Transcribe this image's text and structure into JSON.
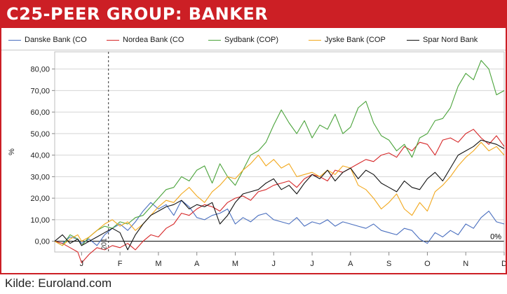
{
  "header": {
    "title": "C25-PEER GROUP: BANKER"
  },
  "footer": {
    "source": "Kilde: Euroland.com"
  },
  "chart_data": {
    "type": "line",
    "ylabel": "%",
    "ylim": [
      -5,
      88
    ],
    "yticks": [
      "0,00",
      "10,00",
      "20,00",
      "30,00",
      "40,00",
      "50,00",
      "60,00",
      "70,00",
      "80,00"
    ],
    "ytick_values": [
      0,
      10,
      20,
      30,
      40,
      50,
      60,
      70,
      80
    ],
    "categories": [
      "J",
      "F",
      "M",
      "A",
      "M",
      "J",
      "J",
      "A",
      "S",
      "O",
      "N",
      "D"
    ],
    "x_axis_note": "201",
    "zero_label": "0%",
    "grid": "horizontal",
    "legend_position": "top",
    "reference_line": {
      "x": 0.7,
      "style": "dashed"
    },
    "x_domain": [
      -0.7,
      11.0
    ],
    "series": [
      {
        "name": "Danske Bank (CO",
        "color": "#4a6fbf",
        "x": [
          -0.7,
          -0.5,
          -0.3,
          -0.1,
          0,
          0.2,
          0.4,
          0.6,
          0.8,
          1.0,
          1.2,
          1.4,
          1.6,
          1.8,
          2.0,
          2.2,
          2.4,
          2.6,
          2.8,
          3.0,
          3.2,
          3.4,
          3.6,
          3.8,
          4.0,
          4.2,
          4.4,
          4.6,
          4.8,
          5.0,
          5.2,
          5.4,
          5.6,
          5.8,
          6.0,
          6.2,
          6.4,
          6.6,
          6.8,
          7.0,
          7.2,
          7.4,
          7.6,
          7.8,
          8.0,
          8.2,
          8.4,
          8.6,
          8.8,
          9.0,
          9.2,
          9.4,
          9.6,
          9.8,
          10.0,
          10.2,
          10.4,
          10.6,
          10.8,
          11.0
        ],
        "y": [
          0,
          -1,
          2,
          1,
          -1,
          1,
          -2,
          3,
          6,
          8,
          5,
          9,
          14,
          18,
          15,
          17,
          12,
          19,
          16,
          11,
          10,
          12,
          13,
          15,
          8,
          11,
          9,
          12,
          13,
          10,
          9,
          8,
          11,
          7,
          9,
          8,
          10,
          7,
          9,
          8,
          7,
          6,
          8,
          5,
          4,
          3,
          6,
          5,
          1,
          -1,
          4,
          2,
          5,
          3,
          8,
          6,
          11,
          14,
          9,
          8
        ]
      },
      {
        "name": "Nordea Bank (CO",
        "color": "#d62728",
        "x": [
          -0.7,
          -0.5,
          -0.3,
          -0.1,
          0,
          0.2,
          0.4,
          0.6,
          0.8,
          1.0,
          1.2,
          1.4,
          1.6,
          1.8,
          2.0,
          2.2,
          2.4,
          2.6,
          2.8,
          3.0,
          3.2,
          3.4,
          3.6,
          3.8,
          4.0,
          4.2,
          4.4,
          4.6,
          4.8,
          5.0,
          5.2,
          5.4,
          5.6,
          5.8,
          6.0,
          6.2,
          6.4,
          6.6,
          6.8,
          7.0,
          7.2,
          7.4,
          7.6,
          7.8,
          8.0,
          8.2,
          8.4,
          8.6,
          8.8,
          9.0,
          9.2,
          9.4,
          9.6,
          9.8,
          10.0,
          10.2,
          10.4,
          10.6,
          10.8,
          11.0
        ],
        "y": [
          0,
          -1,
          -3,
          -5,
          -10,
          -6,
          -3,
          -4,
          -2,
          -3,
          -1,
          -4,
          0,
          3,
          2,
          6,
          8,
          13,
          12,
          15,
          17,
          16,
          14,
          18,
          20,
          21,
          19,
          23,
          24,
          26,
          27,
          28,
          25,
          29,
          31,
          30,
          28,
          33,
          32,
          34,
          36,
          38,
          37,
          40,
          41,
          39,
          44,
          42,
          46,
          45,
          40,
          47,
          48,
          46,
          50,
          52,
          48,
          45,
          49,
          44
        ]
      },
      {
        "name": "Sydbank (COP)",
        "color": "#4aa33a",
        "x": [
          -0.7,
          -0.5,
          -0.3,
          -0.1,
          0,
          0.2,
          0.4,
          0.6,
          0.8,
          1.0,
          1.2,
          1.4,
          1.6,
          1.8,
          2.0,
          2.2,
          2.4,
          2.6,
          2.8,
          3.0,
          3.2,
          3.4,
          3.6,
          3.8,
          4.0,
          4.2,
          4.4,
          4.6,
          4.8,
          5.0,
          5.2,
          5.4,
          5.6,
          5.8,
          6.0,
          6.2,
          6.4,
          6.6,
          6.8,
          7.0,
          7.2,
          7.4,
          7.6,
          7.8,
          8.0,
          8.2,
          8.4,
          8.6,
          8.8,
          9.0,
          9.2,
          9.4,
          9.6,
          9.8,
          10.0,
          10.2,
          10.4,
          10.6,
          10.8,
          11.0
        ],
        "y": [
          0,
          -2,
          3,
          1,
          -2,
          2,
          5,
          7,
          6,
          9,
          8,
          11,
          12,
          16,
          20,
          24,
          25,
          30,
          28,
          33,
          35,
          27,
          36,
          30,
          26,
          33,
          40,
          42,
          46,
          54,
          61,
          55,
          50,
          56,
          48,
          54,
          52,
          59,
          50,
          53,
          62,
          65,
          55,
          49,
          47,
          42,
          45,
          39,
          48,
          50,
          56,
          57,
          62,
          72,
          78,
          75,
          84,
          80,
          68,
          70
        ]
      },
      {
        "name": "Jyske Bank (COP",
        "color": "#f2a81d",
        "x": [
          -0.7,
          -0.5,
          -0.3,
          -0.1,
          0,
          0.2,
          0.4,
          0.6,
          0.8,
          1.0,
          1.2,
          1.4,
          1.6,
          1.8,
          2.0,
          2.2,
          2.4,
          2.6,
          2.8,
          3.0,
          3.2,
          3.4,
          3.6,
          3.8,
          4.0,
          4.2,
          4.4,
          4.6,
          4.8,
          5.0,
          5.2,
          5.4,
          5.6,
          5.8,
          6.0,
          6.2,
          6.4,
          6.6,
          6.8,
          7.0,
          7.2,
          7.4,
          7.6,
          7.8,
          8.0,
          8.2,
          8.4,
          8.6,
          8.8,
          9.0,
          9.2,
          9.4,
          9.6,
          9.8,
          10.0,
          10.2,
          10.4,
          10.6,
          10.8,
          11.0
        ],
        "y": [
          0,
          -2,
          1,
          3,
          0,
          2,
          5,
          8,
          10,
          7,
          9,
          5,
          8,
          12,
          16,
          19,
          18,
          22,
          25,
          21,
          18,
          23,
          26,
          30,
          29,
          33,
          36,
          40,
          35,
          38,
          34,
          36,
          30,
          31,
          32,
          30,
          33,
          31,
          35,
          34,
          26,
          24,
          20,
          15,
          18,
          22,
          15,
          12,
          18,
          14,
          23,
          26,
          30,
          35,
          39,
          42,
          46,
          42,
          44,
          40
        ]
      },
      {
        "name": "Spar Nord Bank",
        "color": "#111111",
        "x": [
          -0.7,
          -0.5,
          -0.3,
          -0.1,
          0,
          0.2,
          0.4,
          0.6,
          0.8,
          1.0,
          1.2,
          1.4,
          1.6,
          1.8,
          2.0,
          2.2,
          2.4,
          2.6,
          2.8,
          3.0,
          3.2,
          3.4,
          3.6,
          3.8,
          4.0,
          4.2,
          4.4,
          4.6,
          4.8,
          5.0,
          5.2,
          5.4,
          5.6,
          5.8,
          6.0,
          6.2,
          6.4,
          6.6,
          6.8,
          7.0,
          7.2,
          7.4,
          7.6,
          7.8,
          8.0,
          8.2,
          8.4,
          8.6,
          8.8,
          9.0,
          9.2,
          9.4,
          9.6,
          9.8,
          10.0,
          10.2,
          10.4,
          10.6,
          10.8,
          11.0
        ],
        "y": [
          0,
          3,
          -1,
          1,
          -2,
          0,
          2,
          4,
          6,
          4,
          -4,
          3,
          8,
          12,
          14,
          16,
          17,
          19,
          15,
          17,
          16,
          18,
          8,
          12,
          18,
          22,
          23,
          24,
          27,
          29,
          24,
          26,
          22,
          27,
          31,
          29,
          33,
          28,
          32,
          34,
          29,
          33,
          31,
          27,
          25,
          23,
          28,
          25,
          24,
          29,
          32,
          28,
          34,
          40,
          42,
          44,
          47,
          46,
          45,
          43
        ]
      }
    ]
  }
}
